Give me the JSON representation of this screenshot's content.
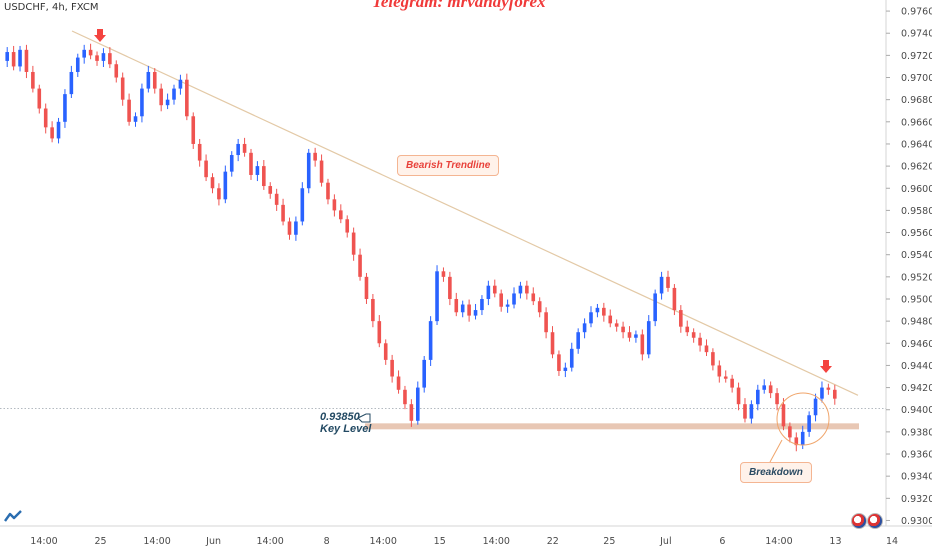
{
  "header": {
    "symbol": "USDCHF, 4h, FXCM",
    "watermark": "Telegram: mrvandyforex"
  },
  "annotations": {
    "trendline_label": "Bearish Trendline",
    "breakdown_label": "Breakdown",
    "key_level_value": "0.93850",
    "key_level_label": "Key Level"
  },
  "colors": {
    "up": "#2962ff",
    "down": "#ef5350",
    "trendline": "#e3c9a6",
    "key_level_band": "#e8c7b4",
    "arrow": "#f4433f",
    "circle": "#f0a56b"
  },
  "icons": [
    "tradingview-logo-icon",
    "pointing-hand-icon",
    "down-arrow-icon",
    "us-flag-icon",
    "swiss-flag-icon"
  ],
  "chart_data": {
    "type": "candlestick",
    "y_axis": {
      "range": [
        0.9295,
        0.977
      ],
      "ticks": [
        "0.97600",
        "0.97400",
        "0.97200",
        "0.97000",
        "0.96800",
        "0.96600",
        "0.96400",
        "0.96200",
        "0.96000",
        "0.95800",
        "0.95600",
        "0.95400",
        "0.95200",
        "0.95000",
        "0.94800",
        "0.94600",
        "0.94400",
        "0.94200",
        "0.94000",
        "0.93800",
        "0.93600",
        "0.93400",
        "0.93200",
        "0.93000"
      ]
    },
    "x_axis": {
      "ticks": [
        "14:00",
        "25",
        "14:00",
        "Jun",
        "14:00",
        "8",
        "14:00",
        "15",
        "14:00",
        "22",
        "25",
        "Jul",
        "6",
        "14:00",
        "13",
        "14"
      ]
    },
    "trendline": {
      "from": 0.9742,
      "to": 0.9413
    },
    "key_level": 0.9385,
    "current_price": 0.9401,
    "path": [
      0.9715,
      0.9723,
      0.971,
      0.9725,
      0.9705,
      0.969,
      0.9672,
      0.9655,
      0.9645,
      0.966,
      0.9685,
      0.9705,
      0.9718,
      0.9725,
      0.972,
      0.9715,
      0.9722,
      0.9712,
      0.97,
      0.968,
      0.966,
      0.9665,
      0.969,
      0.9705,
      0.969,
      0.9675,
      0.968,
      0.969,
      0.9698,
      0.9665,
      0.964,
      0.9625,
      0.961,
      0.96,
      0.959,
      0.9615,
      0.963,
      0.964,
      0.9632,
      0.9612,
      0.962,
      0.9602,
      0.9595,
      0.9585,
      0.957,
      0.9558,
      0.957,
      0.96,
      0.9632,
      0.9625,
      0.9605,
      0.959,
      0.958,
      0.9572,
      0.956,
      0.954,
      0.952,
      0.95,
      0.948,
      0.946,
      0.9445,
      0.943,
      0.9418,
      0.9405,
      0.939,
      0.942,
      0.9445,
      0.948,
      0.9525,
      0.952,
      0.95,
      0.9488,
      0.9495,
      0.9485,
      0.949,
      0.95,
      0.9512,
      0.9505,
      0.9493,
      0.9495,
      0.9505,
      0.9512,
      0.9505,
      0.9498,
      0.9488,
      0.947,
      0.945,
      0.9435,
      0.9438,
      0.9455,
      0.947,
      0.9478,
      0.9488,
      0.9492,
      0.9485,
      0.9478,
      0.9475,
      0.947,
      0.9465,
      0.9468,
      0.945,
      0.948,
      0.9505,
      0.952,
      0.951,
      0.949,
      0.9475,
      0.947,
      0.9465,
      0.9458,
      0.9452,
      0.944,
      0.943,
      0.9428,
      0.942,
      0.9405,
      0.9392,
      0.9405,
      0.9418,
      0.9422,
      0.9415,
      0.9405,
      0.9385,
      0.9375,
      0.9368,
      0.938,
      0.9395,
      0.941,
      0.942,
      0.9418,
      0.941
    ]
  }
}
